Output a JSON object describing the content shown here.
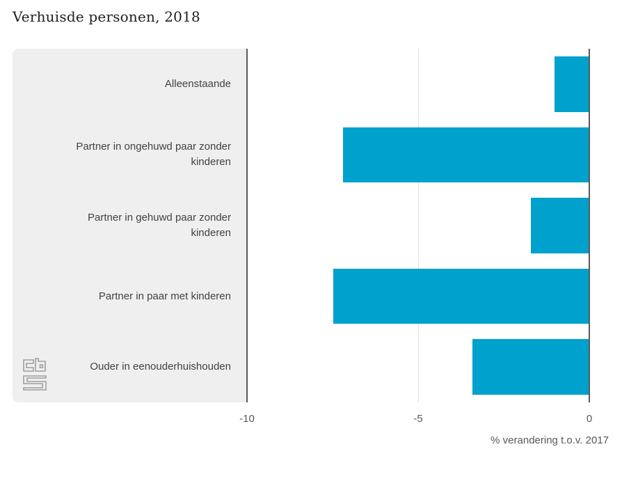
{
  "chart_data": {
    "type": "bar",
    "orientation": "horizontal",
    "title": "Verhuisde personen, 2018",
    "categories": [
      "Alleenstaande",
      "Partner in ongehuwd paar zonder kinderen",
      "Partner in gehuwd paar zonder kinderen",
      "Partner in paar met kinderen",
      "Ouder in eenouderhuishouden"
    ],
    "values": [
      -1.0,
      -7.2,
      -1.7,
      -7.5,
      -3.4
    ],
    "xlabel": "% verandering t.o.v. 2017",
    "ylabel": "",
    "xlim": [
      -10,
      0
    ],
    "xticks": [
      "-10",
      "-5",
      "0"
    ],
    "xtick_values": [
      -10,
      -5,
      0
    ],
    "gridline_values": [
      -5
    ],
    "grid": "vertical-gridline-at-minus-5",
    "legend": "none",
    "bar_color": "#00a1cd"
  },
  "branding": {
    "source_logo": "cbs-logo"
  },
  "colors": {
    "bar": "#00a1cd",
    "panel_background": "#efefef",
    "axis_line": "#58585a",
    "gridline": "#e2e2e2",
    "category_text": "#414141",
    "tick_text": "#58585a",
    "title_text": "#1f1f1f",
    "logo_gray": "#9d9d9d",
    "page_background": "#ffffff"
  }
}
